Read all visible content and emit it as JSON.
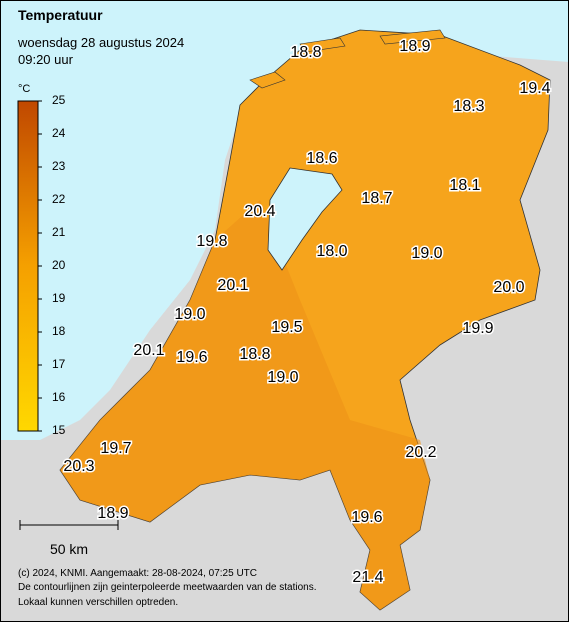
{
  "header": {
    "title": "Temperatuur",
    "date": "woensdag 28 augustus 2024",
    "time": "09:20 uur"
  },
  "colorbar": {
    "unit": "°C",
    "ticks": [
      15,
      16,
      17,
      18,
      19,
      20,
      21,
      22,
      23,
      24,
      25
    ]
  },
  "stations": [
    "18.8",
    "18.9",
    "19.4",
    "18.3",
    "18.6",
    "18.7",
    "18.1",
    "20.4",
    "19.8",
    "18.0",
    "19.0",
    "20.0",
    "20.1",
    "19.0",
    "19.5",
    "19.9",
    "20.1",
    "19.6",
    "18.8",
    "19.0",
    "19.7",
    "20.3",
    "20.2",
    "18.9",
    "19.6",
    "21.4"
  ],
  "scale": "50 km",
  "footer": [
    "(c) 2024, KNMI. Aangemaakt: 28-08-2024, 07:25 UTC",
    "De contourlijnen zijn geinterpoleerde meetwaarden van de stations.",
    "Lokaal kunnen verschillen optreden."
  ]
}
